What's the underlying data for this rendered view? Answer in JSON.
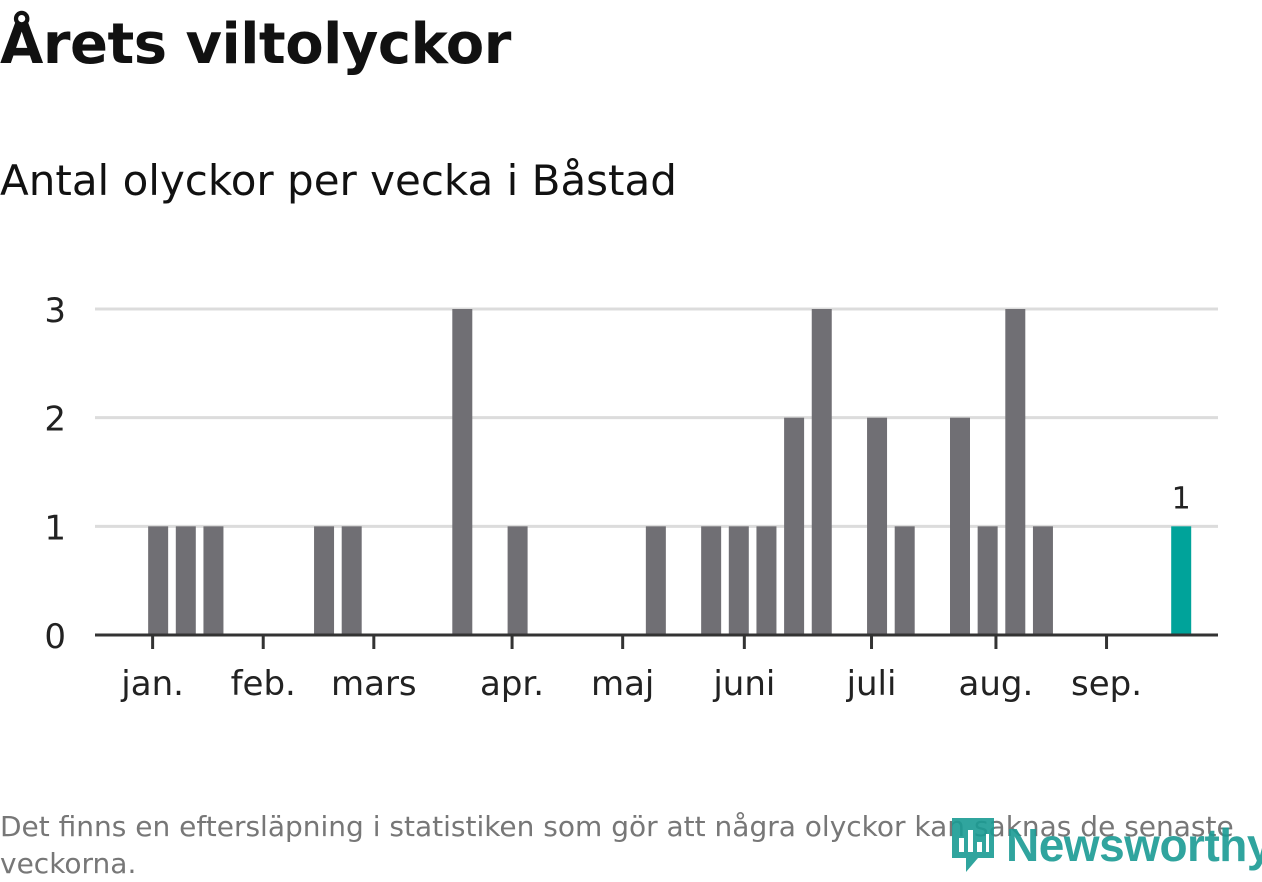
{
  "header": {
    "title": "Årets viltolyckor",
    "subtitle": "Antal olyckor per vecka i Båstad"
  },
  "footnote": "Det finns en eftersläpning i statistiken som gör att några olyckor kan saknas de senaste veckorna.",
  "logo": {
    "text": "Newsworthy",
    "icon": "newsworthy-logo-icon"
  },
  "colors": {
    "bar": "#706f74",
    "highlight": "#00a39a",
    "grid": "#dcdcdc",
    "axis": "#333333"
  },
  "chart_data": {
    "type": "bar",
    "xlabel": "",
    "ylabel": "",
    "ylim": [
      0,
      3
    ],
    "yticks": [
      0,
      1,
      2,
      3
    ],
    "grid": true,
    "week_range": [
      1,
      39
    ],
    "weeks": [
      1,
      2,
      3,
      4,
      5,
      6,
      7,
      8,
      9,
      10,
      11,
      12,
      13,
      14,
      15,
      16,
      17,
      18,
      19,
      20,
      21,
      22,
      23,
      24,
      25,
      26,
      27,
      28,
      29,
      30,
      31,
      32,
      33,
      34,
      35,
      36,
      37,
      38,
      39
    ],
    "values": [
      0,
      1,
      1,
      1,
      0,
      0,
      0,
      1,
      1,
      0,
      0,
      0,
      3,
      0,
      1,
      0,
      0,
      0,
      0,
      1,
      0,
      1,
      1,
      1,
      2,
      3,
      0,
      2,
      1,
      0,
      2,
      1,
      3,
      1,
      0,
      0,
      0,
      0,
      1
    ],
    "highlight_index": 38,
    "highlight_label": "1",
    "month_labels": [
      {
        "label": "jan.",
        "week": 1.8
      },
      {
        "label": "feb.",
        "week": 5.8
      },
      {
        "label": "mars",
        "week": 9.8
      },
      {
        "label": "apr.",
        "week": 14.8
      },
      {
        "label": "maj",
        "week": 18.8
      },
      {
        "label": "juni",
        "week": 23.2
      },
      {
        "label": "juli",
        "week": 27.8
      },
      {
        "label": "aug.",
        "week": 32.3
      },
      {
        "label": "sep.",
        "week": 36.3
      }
    ],
    "month_ticks": [
      1.8,
      5.8,
      9.8,
      14.8,
      18.8,
      23.2,
      27.8,
      32.3,
      36.3
    ]
  }
}
